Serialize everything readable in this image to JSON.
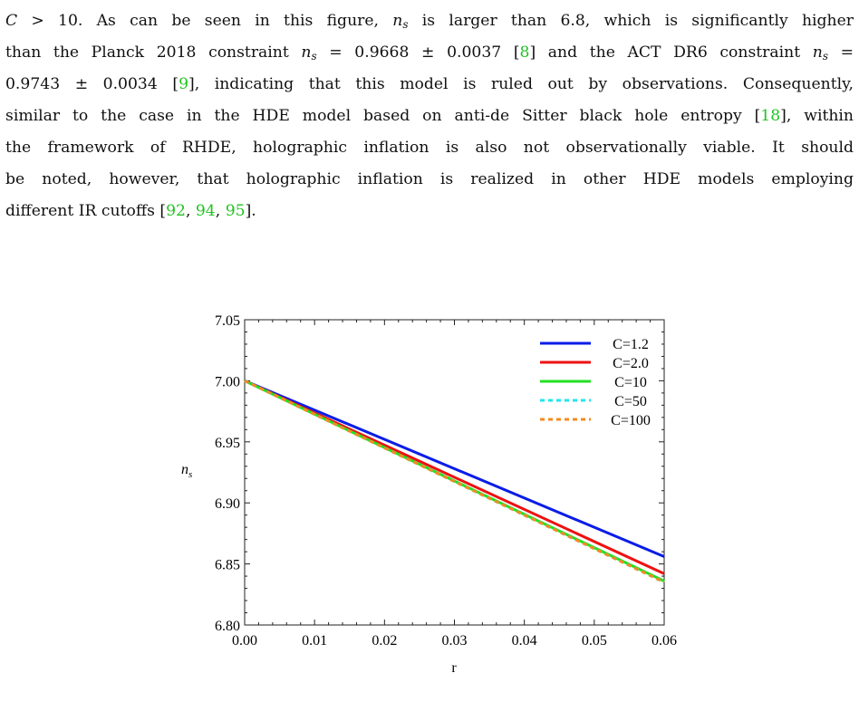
{
  "paragraph": {
    "lines": [
      [
        {
          "t": "C",
          "c": "math"
        },
        {
          "t": " > 10.  As can be seen in this figure, "
        },
        {
          "t": "n",
          "c": "math"
        },
        {
          "t": "s",
          "c": "sub"
        },
        {
          "t": " is larger than 6.8, which is significantly higher"
        }
      ],
      [
        {
          "t": "than the Planck 2018 constraint "
        },
        {
          "t": "n",
          "c": "math"
        },
        {
          "t": "s",
          "c": "sub"
        },
        {
          "t": " = 0.9668 ± 0.0037 ["
        },
        {
          "t": "8",
          "c": "cite"
        },
        {
          "t": "] and the ACT DR6 constraint "
        },
        {
          "t": "n",
          "c": "math"
        },
        {
          "t": "s",
          "c": "sub"
        },
        {
          "t": " ="
        }
      ],
      [
        {
          "t": "0.9743 ± 0.0034 ["
        },
        {
          "t": "9",
          "c": "cite"
        },
        {
          "t": "], indicating that this model is ruled out by observations. Consequently,"
        }
      ],
      [
        {
          "t": "similar to the case in the HDE model based on anti-de Sitter black hole entropy ["
        },
        {
          "t": "18",
          "c": "cite"
        },
        {
          "t": "], within"
        }
      ],
      [
        {
          "t": "the framework of RHDE, holographic inflation is also not observationally viable. It should"
        }
      ],
      [
        {
          "t": "be noted, however, that holographic inflation is realized in other HDE models employing"
        }
      ],
      [
        {
          "t": "different IR cutoffs ["
        },
        {
          "t": "92",
          "c": "cite"
        },
        {
          "t": ", "
        },
        {
          "t": "94",
          "c": "cite"
        },
        {
          "t": ", "
        },
        {
          "t": "95",
          "c": "cite"
        },
        {
          "t": "]."
        }
      ]
    ]
  },
  "chart_data": {
    "type": "line",
    "xlabel": "r",
    "ylabel": "n",
    "ylabel_sub": "s",
    "xlim": [
      0,
      0.06
    ],
    "ylim": [
      6.8,
      7.05
    ],
    "xticks": [
      "0.00",
      "0.01",
      "0.02",
      "0.03",
      "0.04",
      "0.05",
      "0.06"
    ],
    "yticks": [
      "6.80",
      "6.85",
      "6.90",
      "6.95",
      "7.00",
      "7.05"
    ],
    "grid": false,
    "legend_position": "top-right",
    "series": [
      {
        "name": "C=1.2",
        "color": "#0a1de6",
        "dashed": false,
        "x": [
          0.0,
          0.06
        ],
        "values": [
          7.0,
          6.856
        ]
      },
      {
        "name": "C=2.0",
        "color": "#ee1111",
        "dashed": false,
        "x": [
          0.0,
          0.06
        ],
        "values": [
          7.0,
          6.842
        ]
      },
      {
        "name": "C=10",
        "color": "#22e022",
        "dashed": false,
        "x": [
          0.0,
          0.06
        ],
        "values": [
          7.0,
          6.836
        ]
      },
      {
        "name": "C=50",
        "color": "#22e6f0",
        "dashed": true,
        "x": [
          0.0,
          0.06
        ],
        "values": [
          7.0,
          6.835
        ]
      },
      {
        "name": "C=100",
        "color": "#f58a1f",
        "dashed": true,
        "x": [
          0.0,
          0.06
        ],
        "values": [
          7.0,
          6.835
        ]
      }
    ]
  }
}
